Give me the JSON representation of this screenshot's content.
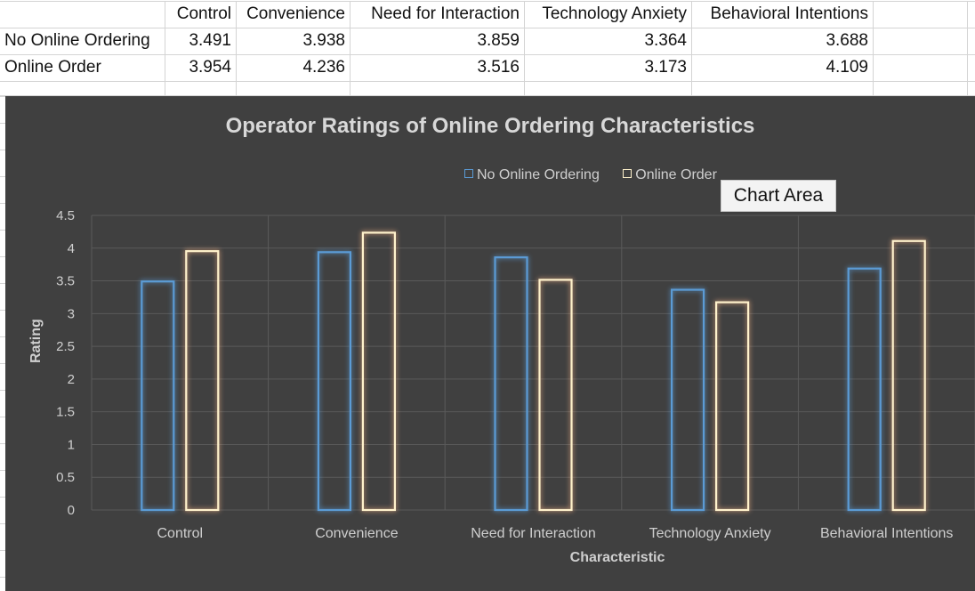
{
  "sheet": {
    "header": [
      "",
      "Control",
      "Convenience",
      "Need for Interaction",
      "Technology Anxiety",
      "Behavioral Intentions"
    ],
    "rows": [
      {
        "label": "No Online Ordering",
        "values": [
          "3.491",
          "3.938",
          "3.859",
          "3.364",
          "3.688"
        ]
      },
      {
        "label": "Online Order",
        "values": [
          "3.954",
          "4.236",
          "3.516",
          "3.173",
          "4.109"
        ]
      }
    ]
  },
  "tooltip": "Chart Area",
  "chart_data": {
    "type": "bar",
    "title": "Operator Ratings of Online Ordering Characteristics",
    "xlabel": "Characteristic",
    "ylabel": "Rating",
    "categories": [
      "Control",
      "Convenience",
      "Need for Interaction",
      "Technology Anxiety",
      "Behavioral Intentions"
    ],
    "series": [
      {
        "name": "No Online Ordering",
        "color": "#5b9bd5",
        "values": [
          3.491,
          3.938,
          3.859,
          3.364,
          3.688
        ]
      },
      {
        "name": "Online Order",
        "color": "#f4b183",
        "values": [
          3.954,
          4.236,
          3.516,
          3.173,
          4.109
        ]
      }
    ],
    "ylim": [
      0,
      4.5
    ],
    "yticks": [
      "0",
      "0.5",
      "1",
      "1.5",
      "2",
      "2.5",
      "3",
      "3.5",
      "4",
      "4.5"
    ],
    "grid": true,
    "legend": "top"
  }
}
